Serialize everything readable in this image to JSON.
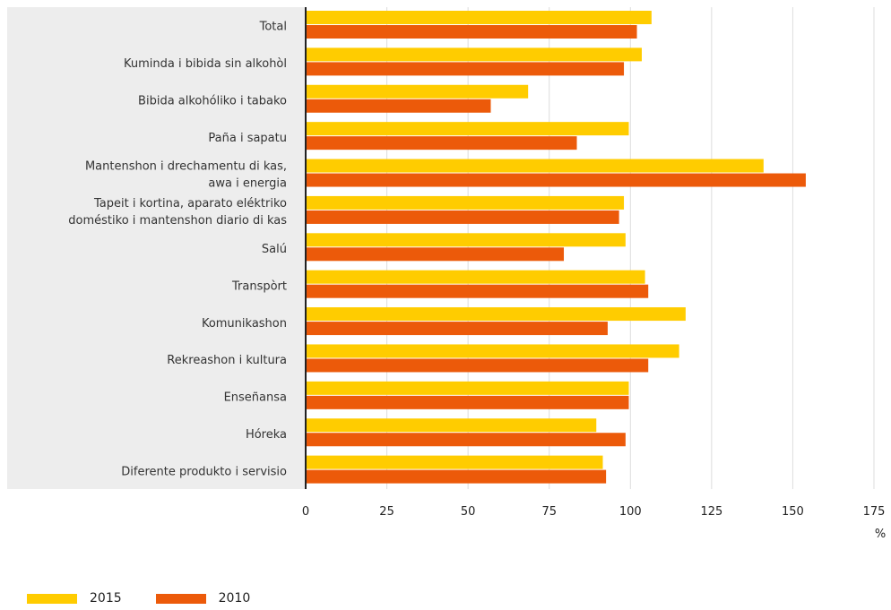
{
  "chart_data": {
    "type": "bar",
    "orientation": "horizontal",
    "categories": [
      [
        "Total"
      ],
      [
        "Kuminda i bibida sin alkohòl"
      ],
      [
        "Bibida alkohóliko i tabako"
      ],
      [
        "Paña i sapatu"
      ],
      [
        "Mantenshon i drechamentu di kas,",
        "awa i energia"
      ],
      [
        "Tapeit i kortina, aparato eléktriko",
        "doméstiko i mantenshon diario di kas"
      ],
      [
        "Salú"
      ],
      [
        "Transpòrt"
      ],
      [
        "Komunikashon"
      ],
      [
        "Rekreashon i kultura"
      ],
      [
        "Enseñansa"
      ],
      [
        "Hóreka"
      ],
      [
        "Diferente produkto i servisio"
      ]
    ],
    "series": [
      {
        "name": "2015",
        "color": "#FFCC00",
        "values": [
          106.5,
          103.5,
          68.5,
          99.5,
          141,
          98,
          98.5,
          104.5,
          117,
          115,
          99.5,
          89.5,
          91.5
        ]
      },
      {
        "name": "2010",
        "color": "#EC5A0A",
        "values": [
          102,
          98,
          57,
          83.5,
          154,
          96.5,
          79.5,
          105.5,
          93,
          105.5,
          99.5,
          98.5,
          92.5
        ]
      }
    ],
    "xlim": [
      0,
      175
    ],
    "xticks": [
      "0",
      "25",
      "50",
      "75",
      "100",
      "125",
      "150",
      "175"
    ],
    "xunit": "%",
    "grid": true,
    "legend_position": "bottom-left"
  }
}
